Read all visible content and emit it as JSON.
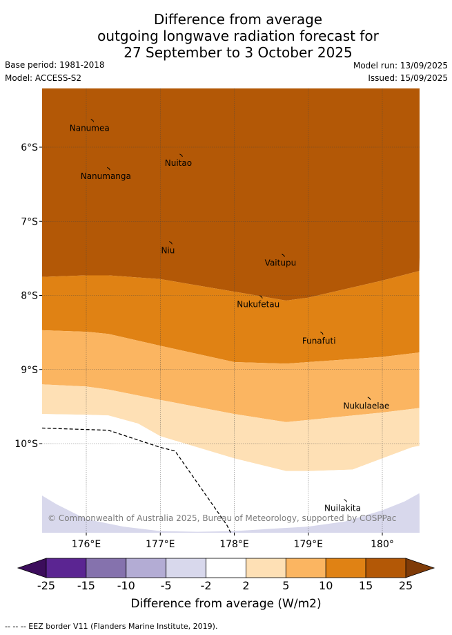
{
  "header": {
    "title_lines": [
      "Difference from average",
      "outgoing longwave radiation forecast for",
      "27 September to 3 October 2025"
    ],
    "base_period": "Base period: 1981-2018",
    "model": "Model: ACCESS-S2",
    "model_run": "Model run: 13/09/2025",
    "issued": "Issued: 15/09/2025"
  },
  "chart_data": {
    "type": "heatmap",
    "subtype": "filled-contour-map",
    "title": "Difference from average outgoing longwave radiation forecast for 27 September to 3 October 2025",
    "x_axis": {
      "ticks": [
        176,
        177,
        178,
        179,
        180
      ],
      "tick_labels": [
        "176°E",
        "177°E",
        "178°E",
        "179°E",
        "180°"
      ],
      "range": [
        175.4,
        180.5
      ]
    },
    "y_axis": {
      "ticks": [
        -6,
        -7,
        -8,
        -9,
        -10
      ],
      "tick_labels": [
        "6°S",
        "7°S",
        "8°S",
        "9°S",
        "10°S"
      ],
      "range": [
        -11.2,
        -5.2
      ]
    },
    "grid": true,
    "contour_boundaries": [
      {
        "between": "15 to 25 / 10 to 15",
        "lon": [
          175.4,
          176.0,
          176.3,
          177.0,
          178.0,
          178.7,
          179.0,
          180.0,
          180.5
        ],
        "lat": [
          -7.75,
          -7.73,
          -7.73,
          -7.78,
          -7.95,
          -8.07,
          -8.03,
          -7.8,
          -7.67
        ]
      },
      {
        "between": "10 to 15 / 5 to 10",
        "lon": [
          175.4,
          176.0,
          176.3,
          177.0,
          178.0,
          178.7,
          179.0,
          180.0,
          180.5
        ],
        "lat": [
          -8.47,
          -8.49,
          -8.52,
          -8.68,
          -8.9,
          -8.92,
          -8.9,
          -8.83,
          -8.77
        ]
      },
      {
        "between": "5 to 10 / 2 to 5",
        "lon": [
          175.4,
          176.0,
          176.3,
          177.0,
          178.0,
          178.7,
          179.0,
          180.0,
          180.5
        ],
        "lat": [
          -9.2,
          -9.23,
          -9.27,
          -9.41,
          -9.6,
          -9.71,
          -9.68,
          -9.58,
          -9.52
        ]
      },
      {
        "between": "2 to 5 / -2 to 2",
        "lon": [
          175.4,
          176.0,
          176.3,
          176.7,
          177.0,
          178.0,
          178.7,
          179.0,
          179.6,
          180.0,
          180.4,
          180.5
        ],
        "lat": [
          -9.6,
          -9.61,
          -9.62,
          -9.73,
          -9.9,
          -10.2,
          -10.37,
          -10.37,
          -10.35,
          -10.2,
          -10.05,
          -10.03
        ]
      },
      {
        "between": "-2 to 2 / -5 to -2",
        "lon": [
          175.4,
          175.6,
          176.0,
          176.5,
          177.0,
          177.5,
          178.0,
          178.5,
          179.0,
          179.5,
          180.0,
          180.3,
          180.5
        ],
        "lat": [
          -10.7,
          -10.82,
          -11.02,
          -11.12,
          -11.18,
          -11.19,
          -11.18,
          -11.15,
          -11.12,
          -11.05,
          -10.9,
          -10.78,
          -10.67
        ]
      }
    ],
    "band_order_top_to_bottom": [
      "15 to 25",
      "10 to 15",
      "5 to 10",
      "2 to 5",
      "-2 to 2",
      "-5 to -2"
    ],
    "eez_border": {
      "lon": [
        175.4,
        176.3,
        177.0,
        177.2,
        177.9,
        177.95
      ],
      "lat": [
        -9.79,
        -9.82,
        -10.05,
        -10.1,
        -11.1,
        -11.2
      ]
    },
    "islands": [
      {
        "name": "Nanumea",
        "lon": 176.1,
        "lat": -5.65
      },
      {
        "name": "Nuitao",
        "lon": 177.3,
        "lat": -6.12
      },
      {
        "name": "Nanumanga",
        "lon": 176.32,
        "lat": -6.3
      },
      {
        "name": "Niu",
        "lon": 177.16,
        "lat": -7.3
      },
      {
        "name": "Vaitupu",
        "lon": 178.68,
        "lat": -7.47
      },
      {
        "name": "Nukufetau",
        "lon": 178.38,
        "lat": -8.03
      },
      {
        "name": "Funafuti",
        "lon": 179.2,
        "lat": -8.52
      },
      {
        "name": "Nukulaelae",
        "lon": 179.84,
        "lat": -9.4
      },
      {
        "name": "Nuilakita",
        "lon": 179.52,
        "lat": -10.78
      }
    ],
    "copyright": "© Commonwealth of Australia 2025, Bureau of Meteorology, supported by COSPPac",
    "colorbar": {
      "label": "Difference from average (W/m2)",
      "bounds": [
        "-25",
        "-15",
        "-10",
        "-5",
        "-2",
        "2",
        "5",
        "10",
        "15",
        "25"
      ],
      "colors": [
        "#5b2592",
        "#8572ad",
        "#b3acd4",
        "#d8d8ec",
        "#ffffff",
        "#fee0b5",
        "#fbb561",
        "#e08214",
        "#b35806"
      ],
      "under_color": "#3c0d5c",
      "over_color": "#7f3b08"
    }
  },
  "footnote": "-- -- -- EEZ border V11 (Flanders Marine Institute, 2019)."
}
